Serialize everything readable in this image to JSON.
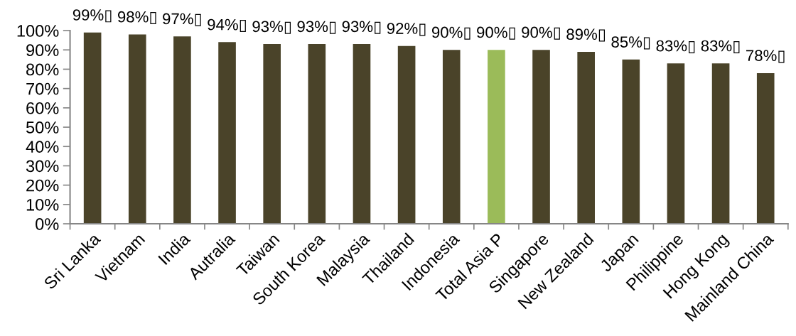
{
  "chart_data": {
    "type": "bar",
    "categories": [
      "Sri Lanka",
      "Vietnam",
      "India",
      "Autralia",
      "Taiwan",
      "South Korea",
      "Malaysia",
      "Thailand",
      "Indonesia",
      "Total Asia P",
      "Singapore",
      "New Zealand",
      "Japan",
      "Philippine",
      "Hong Kong",
      "Mainland China"
    ],
    "values": [
      99,
      98,
      97,
      94,
      93,
      93,
      93,
      92,
      90,
      90,
      90,
      89,
      85,
      83,
      83,
      78
    ],
    "colors": [
      "#4a4329",
      "#4a4329",
      "#4a4329",
      "#4a4329",
      "#4a4329",
      "#4a4329",
      "#4a4329",
      "#4a4329",
      "#4a4329",
      "#9bbb59",
      "#4a4329",
      "#4a4329",
      "#4a4329",
      "#4a4329",
      "#4a4329",
      "#4a4329"
    ],
    "value_labels": [
      "99%▯",
      "98%▯",
      "97%▯",
      "94%▯",
      "93%▯",
      "93%▯",
      "93%▯",
      "92%▯",
      "90%▯",
      "90%▯",
      "90%▯",
      "89%▯",
      "85%▯",
      "83%▯",
      "83%▯",
      "78%▯"
    ],
    "ylim": [
      0,
      100
    ],
    "yticks": [
      {
        "value": 0,
        "label": "0%"
      },
      {
        "value": 10,
        "label": "10%"
      },
      {
        "value": 20,
        "label": "20%"
      },
      {
        "value": 30,
        "label": "30%"
      },
      {
        "value": 40,
        "label": "40%"
      },
      {
        "value": 50,
        "label": "50%"
      },
      {
        "value": 60,
        "label": "60%"
      },
      {
        "value": 70,
        "label": "70%"
      },
      {
        "value": 80,
        "label": "80%"
      },
      {
        "value": 90,
        "label": "90%"
      },
      {
        "value": 100,
        "label": "100%"
      }
    ]
  }
}
